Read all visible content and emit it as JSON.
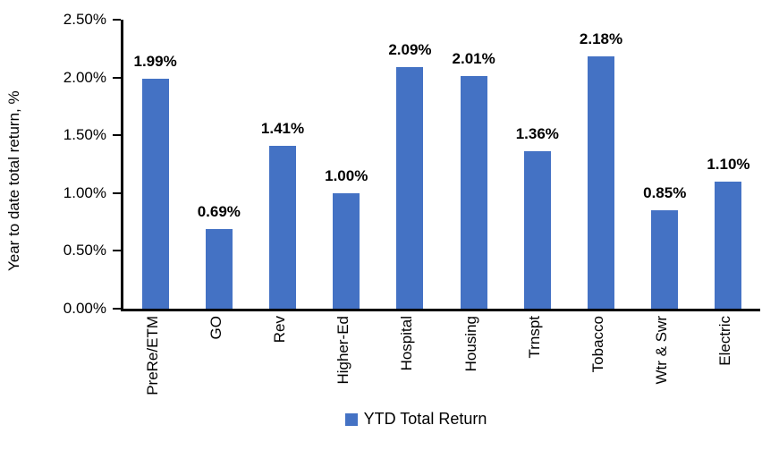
{
  "chart_data": {
    "type": "bar",
    "title": "",
    "xlabel": "",
    "ylabel": "Year to date total return, %",
    "categories": [
      "PreRe/ETM",
      "GO",
      "Rev",
      "Higher-Ed",
      "Hospital",
      "Housing",
      "Trnspt",
      "Tobacco",
      "Wtr & Swr",
      "Electric"
    ],
    "values": [
      1.99,
      0.69,
      1.41,
      1.0,
      2.09,
      2.01,
      1.36,
      2.18,
      0.85,
      1.1
    ],
    "data_labels": [
      "1.99%",
      "0.69%",
      "1.41%",
      "1.00%",
      "2.09%",
      "2.01%",
      "1.36%",
      "2.18%",
      "0.85%",
      "1.10%"
    ],
    "y_ticks": [
      "2.50%",
      "2.00%",
      "1.50%",
      "1.00%",
      "0.50%",
      "0.00%"
    ],
    "ylim": [
      0,
      2.5
    ],
    "grid": false,
    "bar_color": "#4472C4",
    "axis_color": "#000000",
    "legend_position": "bottom",
    "legend": [
      {
        "label": "YTD Total Return",
        "color": "#4472C4"
      }
    ]
  }
}
